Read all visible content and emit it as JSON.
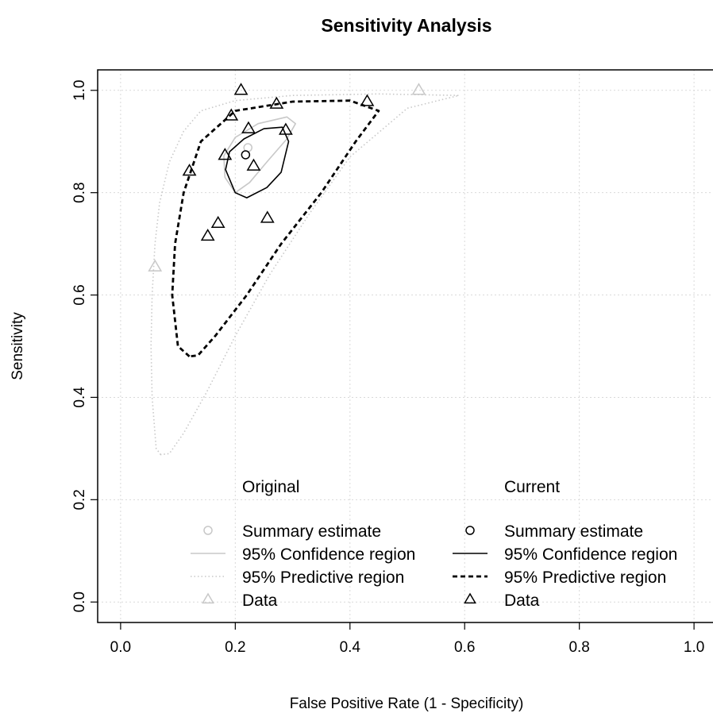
{
  "chart_data": {
    "type": "scatter",
    "title": "Sensitivity Analysis",
    "xlabel": "False Positive Rate (1 - Specificity)",
    "ylabel": "Sensitivity",
    "xlim": [
      -0.04,
      1.04
    ],
    "ylim": [
      -0.04,
      1.04
    ],
    "x_ticks": [
      "0.0",
      "0.2",
      "0.4",
      "0.6",
      "0.8",
      "1.0"
    ],
    "y_ticks": [
      "0.0",
      "0.2",
      "0.4",
      "0.6",
      "0.8",
      "1.0"
    ],
    "grid": true,
    "series": [
      {
        "name": "Original",
        "color": "#c8c8c8",
        "summary_estimate": {
          "x": 0.222,
          "y": 0.888
        },
        "data": [
          {
            "x": 0.06,
            "y": 0.655
          },
          {
            "x": 0.52,
            "y": 1.0
          }
        ],
        "confidence_region": [
          [
            0.2,
            0.8
          ],
          [
            0.182,
            0.83
          ],
          [
            0.18,
            0.872
          ],
          [
            0.2,
            0.908
          ],
          [
            0.24,
            0.935
          ],
          [
            0.29,
            0.948
          ],
          [
            0.305,
            0.935
          ],
          [
            0.29,
            0.905
          ],
          [
            0.255,
            0.86
          ],
          [
            0.225,
            0.82
          ],
          [
            0.2,
            0.8
          ]
        ],
        "predictive_region": [
          [
            0.07,
            0.288
          ],
          [
            0.062,
            0.3
          ],
          [
            0.055,
            0.4
          ],
          [
            0.053,
            0.5
          ],
          [
            0.055,
            0.6
          ],
          [
            0.06,
            0.7
          ],
          [
            0.068,
            0.78
          ],
          [
            0.085,
            0.86
          ],
          [
            0.11,
            0.92
          ],
          [
            0.14,
            0.96
          ],
          [
            0.2,
            0.98
          ],
          [
            0.3,
            0.99
          ],
          [
            0.45,
            0.993
          ],
          [
            0.59,
            0.99
          ],
          [
            0.5,
            0.965
          ],
          [
            0.4,
            0.87
          ],
          [
            0.33,
            0.76
          ],
          [
            0.26,
            0.64
          ],
          [
            0.2,
            0.52
          ],
          [
            0.15,
            0.41
          ],
          [
            0.11,
            0.33
          ],
          [
            0.085,
            0.29
          ],
          [
            0.07,
            0.288
          ]
        ]
      },
      {
        "name": "Current",
        "color": "#000000",
        "summary_estimate": {
          "x": 0.218,
          "y": 0.874
        },
        "data": [
          {
            "x": 0.21,
            "y": 1.0
          },
          {
            "x": 0.43,
            "y": 0.978
          },
          {
            "x": 0.272,
            "y": 0.973
          },
          {
            "x": 0.193,
            "y": 0.95
          },
          {
            "x": 0.223,
            "y": 0.925
          },
          {
            "x": 0.288,
            "y": 0.922
          },
          {
            "x": 0.182,
            "y": 0.873
          },
          {
            "x": 0.232,
            "y": 0.852
          },
          {
            "x": 0.12,
            "y": 0.842
          },
          {
            "x": 0.256,
            "y": 0.75
          },
          {
            "x": 0.17,
            "y": 0.74
          },
          {
            "x": 0.152,
            "y": 0.715
          }
        ],
        "confidence_region": [
          [
            0.183,
            0.845
          ],
          [
            0.2,
            0.8
          ],
          [
            0.22,
            0.79
          ],
          [
            0.255,
            0.81
          ],
          [
            0.28,
            0.84
          ],
          [
            0.293,
            0.9
          ],
          [
            0.282,
            0.928
          ],
          [
            0.25,
            0.925
          ],
          [
            0.215,
            0.905
          ],
          [
            0.19,
            0.88
          ],
          [
            0.183,
            0.845
          ]
        ],
        "predictive_region": [
          [
            0.12,
            0.48
          ],
          [
            0.1,
            0.5
          ],
          [
            0.09,
            0.6
          ],
          [
            0.095,
            0.7
          ],
          [
            0.11,
            0.8
          ],
          [
            0.14,
            0.9
          ],
          [
            0.2,
            0.96
          ],
          [
            0.3,
            0.978
          ],
          [
            0.4,
            0.98
          ],
          [
            0.45,
            0.96
          ],
          [
            0.41,
            0.9
          ],
          [
            0.35,
            0.8
          ],
          [
            0.28,
            0.7
          ],
          [
            0.22,
            0.6
          ],
          [
            0.165,
            0.52
          ],
          [
            0.135,
            0.482
          ],
          [
            0.12,
            0.48
          ]
        ]
      }
    ],
    "legend": {
      "placement": "bottom-right",
      "groups": [
        {
          "heading": "Original",
          "entries": [
            {
              "label": "Summary estimate",
              "symbol": "circle"
            },
            {
              "label": "95% Confidence region",
              "symbol": "solid-line"
            },
            {
              "label": "95% Predictive region",
              "symbol": "dotted-line"
            },
            {
              "label": "Data",
              "symbol": "triangle"
            }
          ]
        },
        {
          "heading": "Current",
          "entries": [
            {
              "label": "Summary estimate",
              "symbol": "circle"
            },
            {
              "label": "95% Confidence region",
              "symbol": "solid-line"
            },
            {
              "label": "95% Predictive region",
              "symbol": "dashed-line"
            },
            {
              "label": "Data",
              "symbol": "triangle"
            }
          ]
        }
      ]
    }
  }
}
